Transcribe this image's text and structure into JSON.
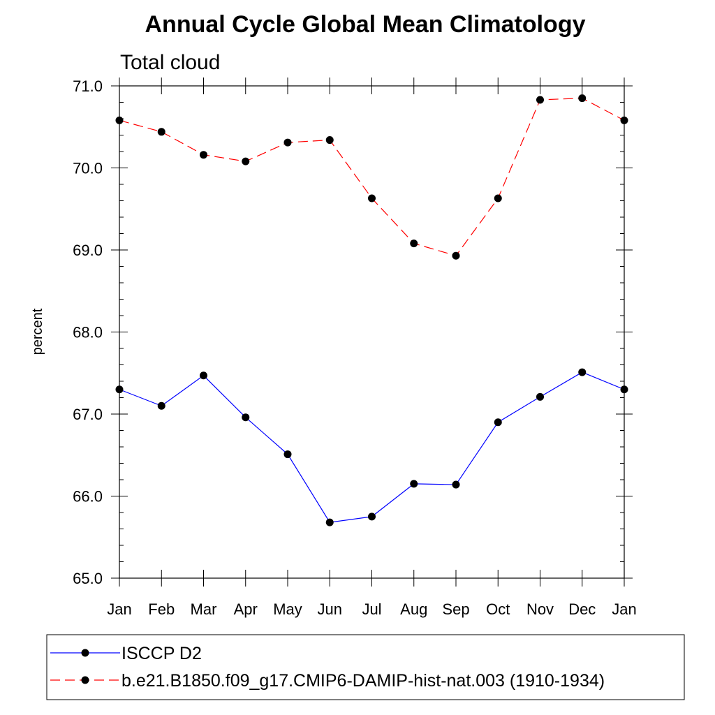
{
  "chart_data": {
    "type": "line",
    "title": "Annual Cycle Global Mean Climatology",
    "subtitle": "Total cloud",
    "xlabel": "",
    "ylabel": "percent",
    "categories": [
      "Jan",
      "Feb",
      "Mar",
      "Apr",
      "May",
      "Jun",
      "Jul",
      "Aug",
      "Sep",
      "Oct",
      "Nov",
      "Dec",
      "Jan"
    ],
    "ylim": [
      65.0,
      71.0
    ],
    "yticks": [
      "65.0",
      "66.0",
      "67.0",
      "68.0",
      "69.0",
      "70.0",
      "71.0"
    ],
    "grid": false,
    "legend_position": "bottom",
    "series": [
      {
        "name": "ISCCP D2",
        "color": "#0000ff",
        "line_style": "solid",
        "marker": "circle",
        "values": [
          67.3,
          67.1,
          67.47,
          66.96,
          66.51,
          65.68,
          65.75,
          66.15,
          66.14,
          66.9,
          67.21,
          67.51,
          67.3
        ]
      },
      {
        "name": "b.e21.B1850.f09_g17.CMIP6-DAMIP-hist-nat.003 (1910-1934)",
        "color": "#ff0000",
        "line_style": "dashed",
        "marker": "circle",
        "values": [
          70.58,
          70.44,
          70.16,
          70.08,
          70.31,
          70.34,
          69.63,
          69.08,
          68.93,
          69.63,
          70.83,
          70.85,
          70.58
        ]
      }
    ]
  }
}
